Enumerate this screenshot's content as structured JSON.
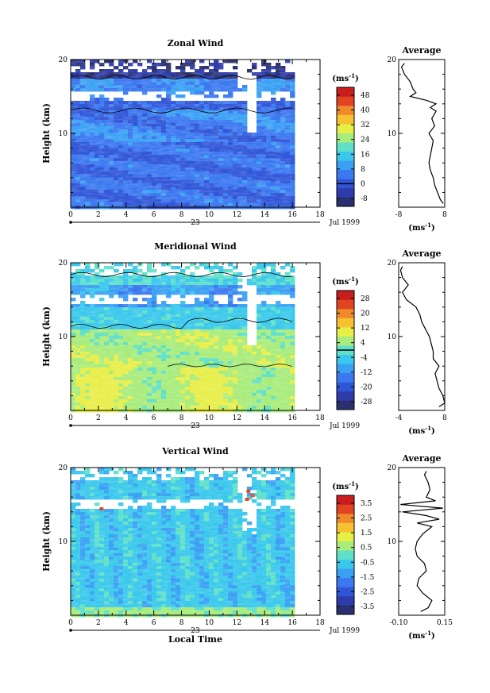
{
  "chart_data": [
    {
      "type": "heatmap",
      "title": "Zonal Wind",
      "ylabel": "Height (km)",
      "xlim": [
        0,
        18
      ],
      "x_ticks": [
        "0",
        "2",
        "4",
        "6",
        "8",
        "10",
        "12",
        "14",
        "16",
        "18"
      ],
      "ylim": [
        0,
        20
      ],
      "y_ticks": [
        "10",
        "20"
      ],
      "date_marker": "23",
      "date_label": "Jul 1999",
      "data_extent_hours": [
        0,
        16
      ],
      "colorbar": {
        "unit": "(ms",
        "unit_exp": "-1",
        "unit_close": ")",
        "labels": [
          "48",
          "40",
          "32",
          "24",
          "16",
          "8",
          "0",
          "-8"
        ],
        "range": [
          -8,
          48
        ]
      },
      "profile": {
        "title": "Average",
        "x_ticks": [
          "-8",
          "8"
        ],
        "xlim": [
          -8,
          8
        ],
        "unit": "(ms",
        "unit_exp": "-1",
        "unit_close": ")",
        "y_ticks": [
          "10",
          "20"
        ],
        "heights": [
          0.5,
          1,
          2,
          3,
          4,
          5,
          6,
          7,
          8,
          9,
          10,
          11,
          12,
          13,
          13.5,
          14,
          14.5,
          15,
          15.5,
          16,
          17,
          18,
          19,
          19.5
        ],
        "values": [
          7.5,
          6.5,
          5.5,
          4.5,
          4,
          3,
          2.5,
          3,
          3.5,
          4,
          2.5,
          4.5,
          3.5,
          5,
          3,
          5,
          1.5,
          -4,
          -2,
          -3,
          -4,
          -6,
          -7,
          -6
        ]
      }
    },
    {
      "type": "heatmap",
      "title": "Meridional Wind",
      "ylabel": "Height (km)",
      "xlim": [
        0,
        18
      ],
      "x_ticks": [
        "0",
        "2",
        "4",
        "6",
        "8",
        "10",
        "12",
        "14",
        "16",
        "18"
      ],
      "ylim": [
        0,
        20
      ],
      "y_ticks": [
        "10",
        "20"
      ],
      "date_marker": "23",
      "date_label": "Jul 1999",
      "data_extent_hours": [
        0,
        16
      ],
      "colorbar": {
        "unit": "(ms",
        "unit_exp": "-1",
        "unit_close": ")",
        "labels": [
          "28",
          "20",
          "12",
          "4",
          "-4",
          "-12",
          "-20",
          "-28"
        ],
        "range": [
          -28,
          28
        ]
      },
      "profile": {
        "title": "Average",
        "x_ticks": [
          "-4",
          "8"
        ],
        "xlim": [
          -4,
          8
        ],
        "unit": "(ms",
        "unit_exp": "-1",
        "unit_close": ")",
        "y_ticks": [
          "10",
          "20"
        ],
        "heights": [
          0.5,
          1,
          2,
          3,
          4,
          5,
          6,
          7,
          8,
          9,
          10,
          11,
          12,
          13,
          14,
          15,
          16,
          17,
          18,
          19,
          19.5
        ],
        "values": [
          6.5,
          8,
          7.5,
          6.5,
          6,
          5.5,
          6.5,
          5,
          5,
          4.5,
          4,
          3,
          2,
          1.5,
          0.5,
          -2,
          -3,
          -1.5,
          -3,
          -3.5,
          -3
        ]
      }
    },
    {
      "type": "heatmap",
      "title": "Vertical Wind",
      "ylabel": "Height (km)",
      "xlabel": "Local Time",
      "xlim": [
        0,
        18
      ],
      "x_ticks": [
        "0",
        "2",
        "4",
        "6",
        "8",
        "10",
        "12",
        "14",
        "16",
        "18"
      ],
      "ylim": [
        0,
        20
      ],
      "y_ticks": [
        "10",
        "20"
      ],
      "date_marker": "23",
      "date_label": "Jul 1999",
      "data_extent_hours": [
        0,
        16
      ],
      "colorbar": {
        "unit": "(ms",
        "unit_exp": "-1",
        "unit_close": ")",
        "labels": [
          "3.5",
          "2.5",
          "1.5",
          "0.5",
          "-0.5",
          "-1.5",
          "-2.5",
          "-3.5"
        ],
        "range": [
          -3.5,
          3.5
        ]
      },
      "profile": {
        "title": "Average",
        "x_ticks": [
          "-0.10",
          "0.15"
        ],
        "xlim": [
          -0.1,
          0.15
        ],
        "unit": "(ms",
        "unit_exp": "-1",
        "unit_close": ")",
        "y_ticks": [
          "10",
          "20"
        ],
        "heights": [
          0.5,
          1,
          2,
          3,
          4,
          5,
          6,
          7,
          8,
          9,
          10,
          11,
          12,
          12.5,
          13,
          13.5,
          14,
          14.5,
          15,
          15.5,
          16,
          17,
          18,
          19,
          19.5
        ],
        "values": [
          0.02,
          0.06,
          0.08,
          0.03,
          0.0,
          0.01,
          0.05,
          0.04,
          0.0,
          -0.01,
          0.0,
          0.03,
          0.08,
          0.0,
          0.12,
          0.05,
          -0.08,
          0.14,
          -0.09,
          0.1,
          0.05,
          0.07,
          0.06,
          0.04,
          0.05
        ]
      }
    }
  ]
}
